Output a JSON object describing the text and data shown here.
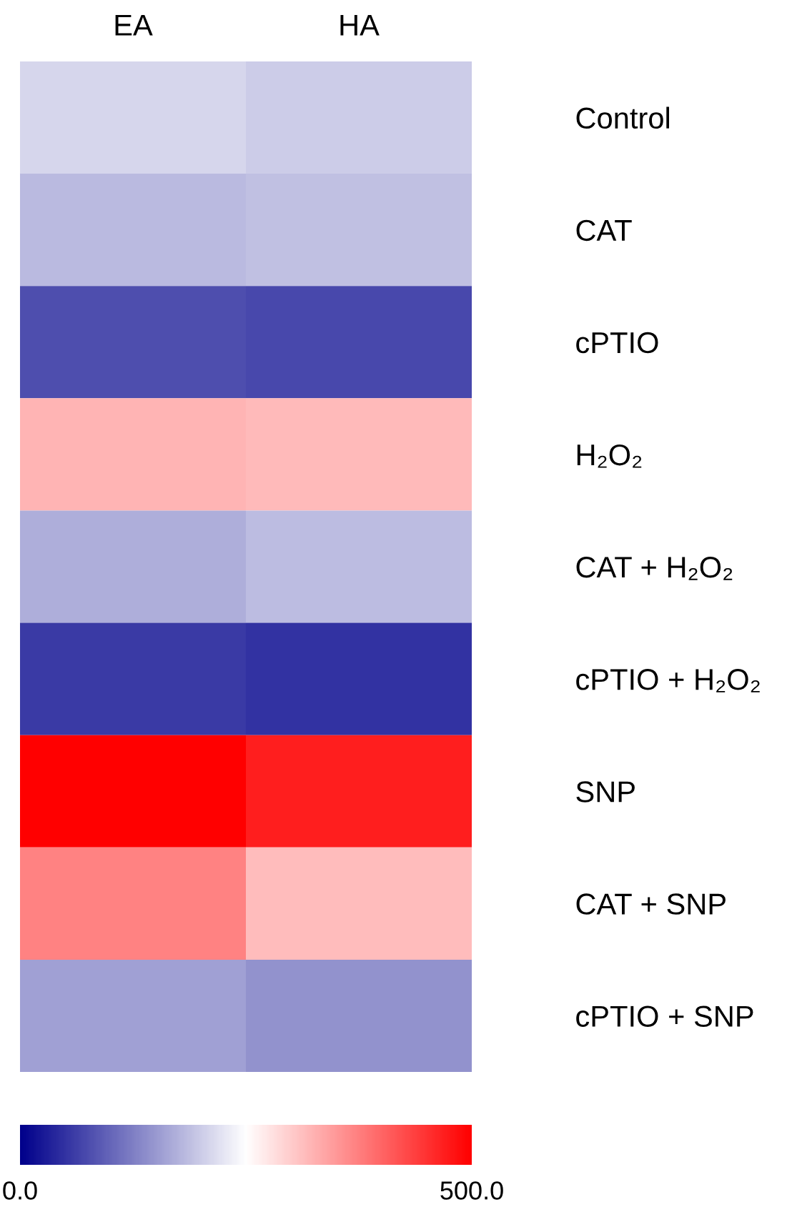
{
  "chart_data": {
    "type": "heatmap",
    "categories": [
      "EA",
      "HA"
    ],
    "y_categories": [
      "Control",
      "CAT",
      "cPTIO",
      "H₂O₂",
      "CAT + H₂O₂",
      "cPTIO + H₂O₂",
      "SNP",
      "CAT + SNP",
      "cPTIO + SNP"
    ],
    "cells": [
      [
        209,
        201
      ],
      [
        183,
        188
      ],
      [
        77,
        71
      ],
      [
        323,
        317
      ],
      [
        170,
        185
      ],
      [
        58,
        49
      ],
      [
        500,
        469
      ],
      [
        372,
        315
      ],
      [
        157,
        144
      ]
    ],
    "clim": [
      0,
      500
    ],
    "cticks": [
      {
        "value": 0,
        "label": "0.0"
      },
      {
        "value": 500,
        "label": "500.0"
      }
    ]
  }
}
